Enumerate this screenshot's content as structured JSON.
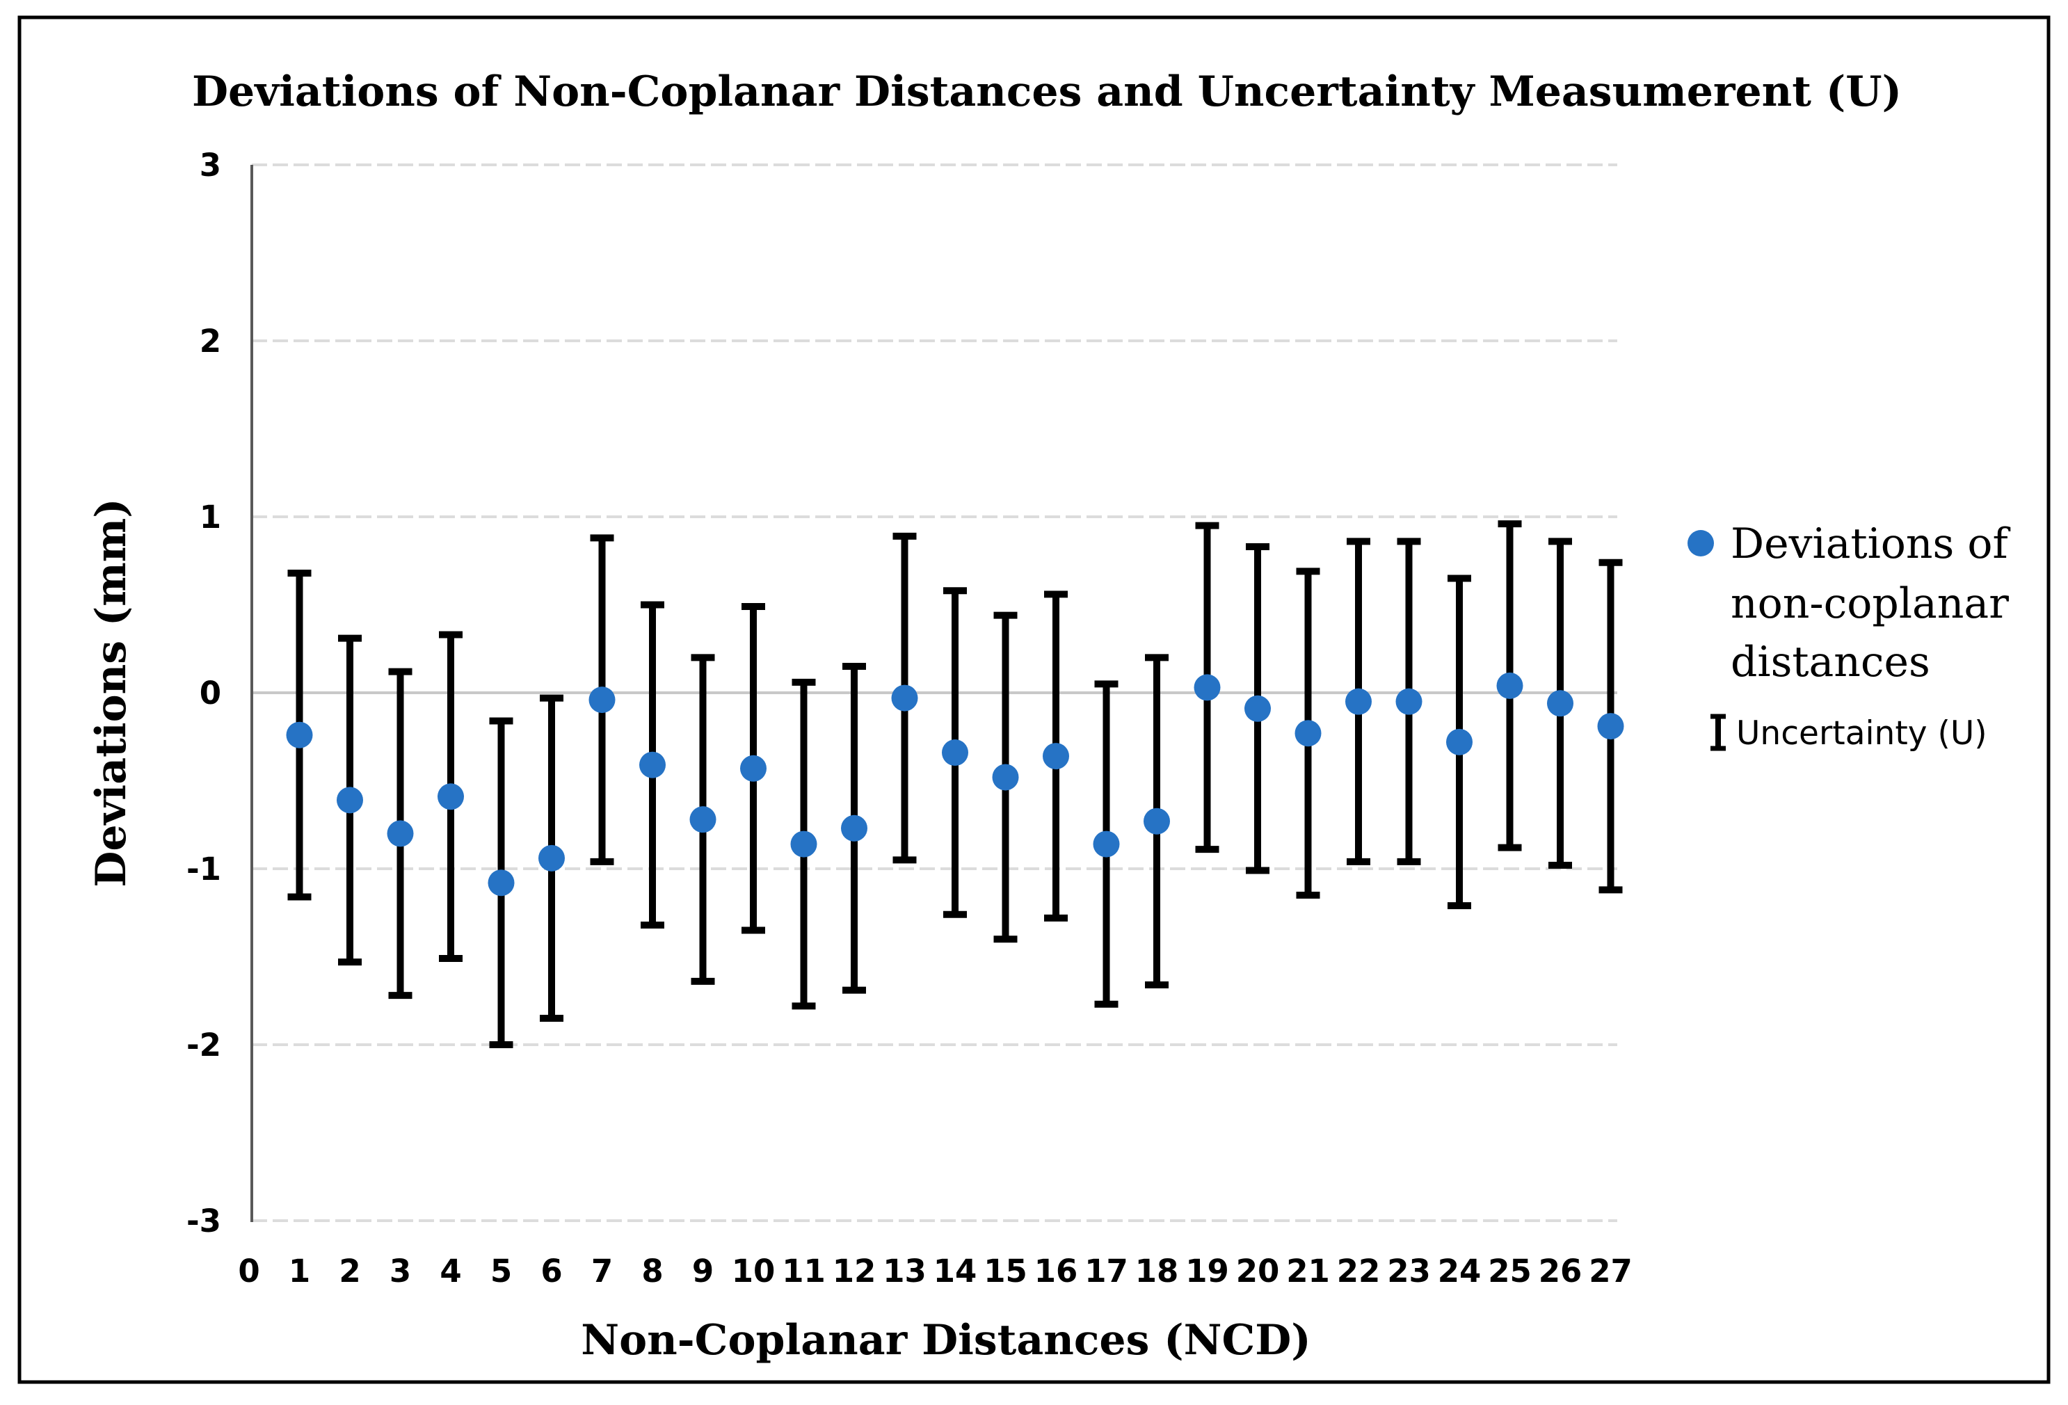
{
  "chart_data": {
    "type": "scatter",
    "title": "Deviations of Non-Coplanar Distances and Uncertainty Measumerent (U)",
    "xlabel": "Non-Coplanar Distances (NCD)",
    "ylabel": "Deviations (mm)",
    "xlim": [
      0,
      27
    ],
    "ylim": [
      -3,
      3
    ],
    "x_ticks": [
      0,
      1,
      2,
      3,
      4,
      5,
      6,
      7,
      8,
      9,
      10,
      11,
      12,
      13,
      14,
      15,
      16,
      17,
      18,
      19,
      20,
      21,
      22,
      23,
      24,
      25,
      26,
      27
    ],
    "y_ticks": [
      3,
      2,
      1,
      0,
      -1,
      -2,
      -3
    ],
    "grid": "horizontal dashed gridlines at every integer, solid line at 0",
    "legend_position": "right",
    "series": [
      {
        "name": "Deviations of non-coplanar distances",
        "type": "scatter",
        "x": [
          1,
          2,
          3,
          4,
          5,
          6,
          7,
          8,
          9,
          10,
          11,
          12,
          13,
          14,
          15,
          16,
          17,
          18,
          19,
          20,
          21,
          22,
          23,
          24,
          25,
          26,
          27
        ],
        "y": [
          -0.24,
          -0.61,
          -0.8,
          -0.59,
          -1.08,
          -0.94,
          -0.04,
          -0.41,
          -0.72,
          -0.43,
          -0.86,
          -0.77,
          -0.03,
          -0.34,
          -0.48,
          -0.36,
          -0.86,
          -0.73,
          0.03,
          -0.09,
          -0.23,
          -0.05,
          -0.05,
          -0.28,
          0.04,
          -0.06,
          -0.19
        ]
      },
      {
        "name": "Uncertainty (U)",
        "type": "error-bar",
        "u": [
          0.92,
          0.92,
          0.92,
          0.92,
          0.92,
          0.91,
          0.92,
          0.91,
          0.92,
          0.92,
          0.92,
          0.92,
          0.92,
          0.92,
          0.92,
          0.92,
          0.91,
          0.93,
          0.92,
          0.92,
          0.92,
          0.91,
          0.91,
          0.93,
          0.92,
          0.92,
          0.93
        ]
      }
    ]
  },
  "legend": {
    "deviations_lines": [
      "Deviations of",
      "non-coplanar",
      "distances"
    ],
    "uncertainty_label": "Uncertainty (U)"
  },
  "colors": {
    "marker_blue": "#2673C5",
    "error_bar": "#000000",
    "gridline": "#DCDCDC",
    "zero_line": "#C8C8C8",
    "axis_line": "#595959",
    "border": "#000000",
    "background": "#FFFFFF"
  }
}
